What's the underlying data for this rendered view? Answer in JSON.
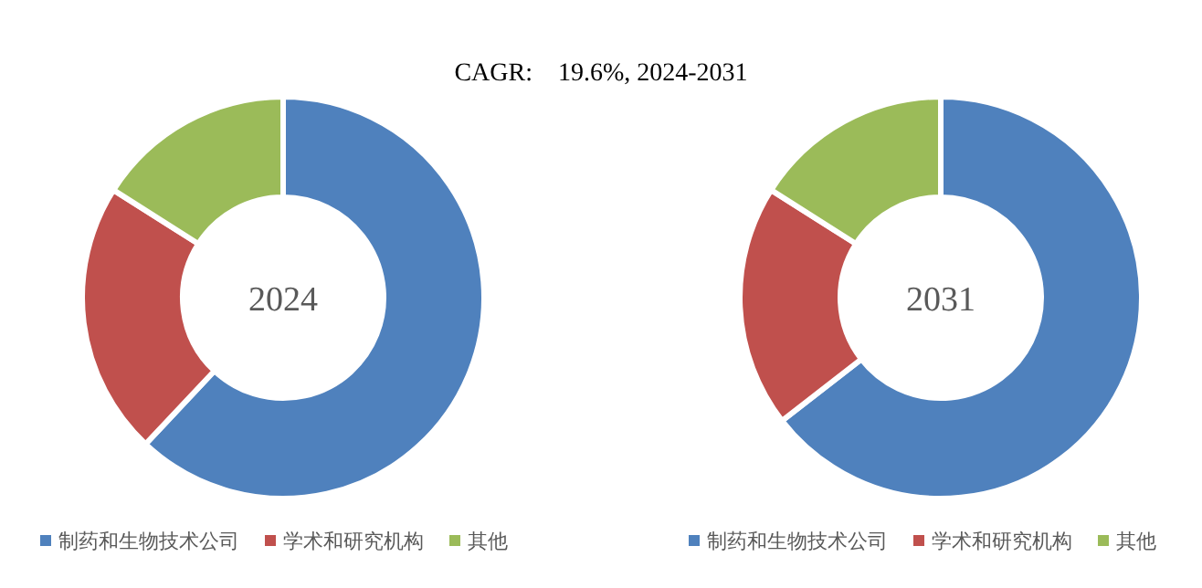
{
  "chart_data": [
    {
      "type": "donut",
      "title": "2024",
      "annotations": [
        "CAGR:    19.6%, 2024-2031"
      ],
      "categories": [
        "制药和生物技术公司",
        "学术和研究机构",
        "其他"
      ],
      "values": [
        62,
        22,
        16
      ],
      "colors": [
        "#4f81bd",
        "#c0504d",
        "#9bbb59"
      ],
      "legend": "bottom"
    },
    {
      "type": "donut",
      "title": "2031",
      "categories": [
        "制药和生物技术公司",
        "学术和研究机构",
        "其他"
      ],
      "values": [
        64.5,
        19.5,
        16
      ],
      "colors": [
        "#4f81bd",
        "#c0504d",
        "#9bbb59"
      ],
      "legend": "bottom"
    }
  ]
}
